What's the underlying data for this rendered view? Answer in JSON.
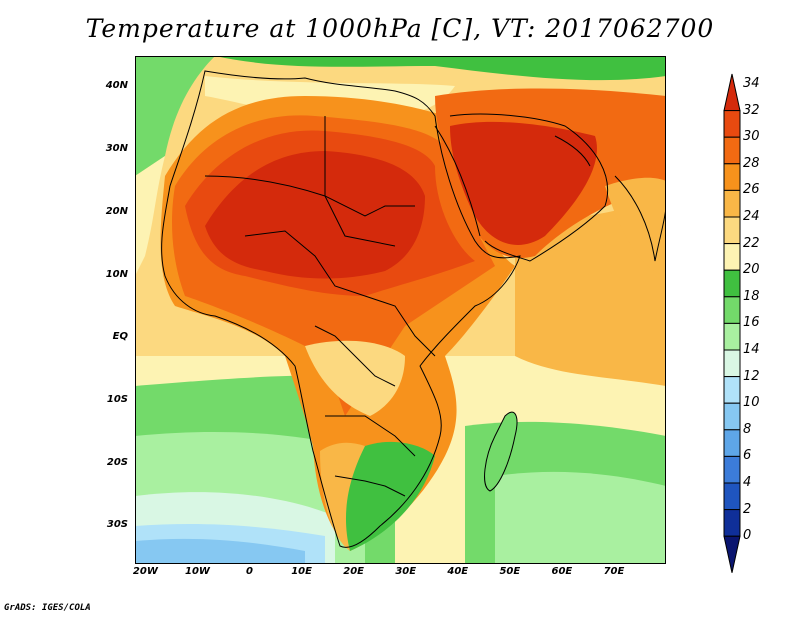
{
  "title": "Temperature at 1000hPa [C], VT: 2017062700",
  "footer": "GrADS: IGES/COLA",
  "axes": {
    "lat_ticks": [
      {
        "label": "40N",
        "value": 40
      },
      {
        "label": "30N",
        "value": 30
      },
      {
        "label": "20N",
        "value": 20
      },
      {
        "label": "10N",
        "value": 10
      },
      {
        "label": "EQ",
        "value": 0
      },
      {
        "label": "10S",
        "value": -10
      },
      {
        "label": "20S",
        "value": -20
      },
      {
        "label": "30S",
        "value": -30
      }
    ],
    "lon_ticks": [
      {
        "label": "20W",
        "value": -20
      },
      {
        "label": "10W",
        "value": -10
      },
      {
        "label": "0",
        "value": 0
      },
      {
        "label": "10E",
        "value": 10
      },
      {
        "label": "20E",
        "value": 20
      },
      {
        "label": "30E",
        "value": 30
      },
      {
        "label": "40E",
        "value": 40
      },
      {
        "label": "50E",
        "value": 50
      },
      {
        "label": "60E",
        "value": 60
      },
      {
        "label": "70E",
        "value": 70
      }
    ],
    "lon_range": [
      -22,
      80
    ],
    "lat_range": [
      -36,
      45
    ]
  },
  "colorbar": {
    "labels": [
      "34",
      "32",
      "30",
      "28",
      "26",
      "24",
      "22",
      "20",
      "18",
      "16",
      "14",
      "12",
      "10",
      "8",
      "6",
      "4",
      "2",
      "0"
    ],
    "colors": [
      "#d42a0c",
      "#e84a10",
      "#f26a12",
      "#f7921c",
      "#f9b747",
      "#fcd980",
      "#fdf3b3",
      "#40c040",
      "#73da6a",
      "#a9f0a0",
      "#d9f7e4",
      "#b0e2f9",
      "#86c8f2",
      "#5ea6e8",
      "#3c7cd9",
      "#1f55bf",
      "#0f2f99",
      "#0a1570"
    ]
  }
}
